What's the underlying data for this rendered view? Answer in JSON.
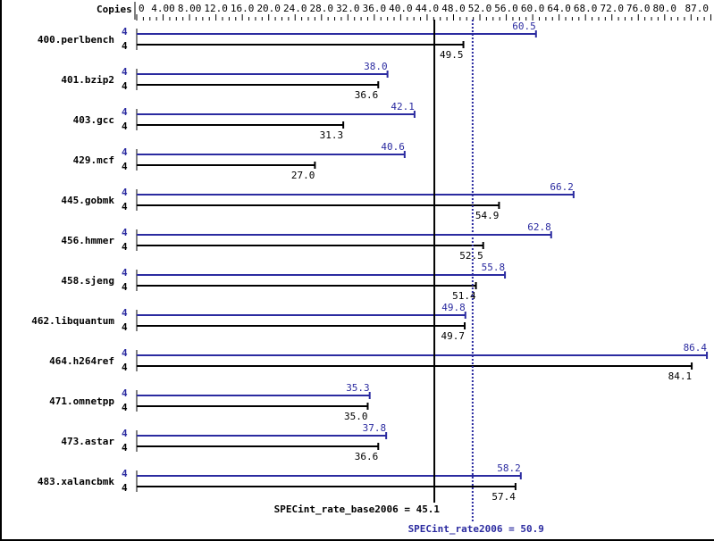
{
  "chart_data": {
    "type": "bar",
    "orientation": "horizontal",
    "title": "",
    "axis_header": "Copies",
    "x_ticks": [
      "0",
      "4.00",
      "8.00",
      "12.0",
      "16.0",
      "20.0",
      "24.0",
      "28.0",
      "32.0",
      "36.0",
      "40.0",
      "44.0",
      "48.0",
      "52.0",
      "56.0",
      "60.0",
      "64.0",
      "68.0",
      "72.0",
      "76.0",
      "80.0",
      "87.0"
    ],
    "x_tick_values": [
      0,
      4,
      8,
      12,
      16,
      20,
      24,
      28,
      32,
      36,
      40,
      44,
      48,
      52,
      56,
      60,
      64,
      68,
      72,
      76,
      80,
      87
    ],
    "xlim": [
      0,
      87
    ],
    "categories": [
      "400.perlbench",
      "401.bzip2",
      "403.gcc",
      "429.mcf",
      "445.gobmk",
      "456.hmmer",
      "458.sjeng",
      "462.libquantum",
      "464.h264ref",
      "471.omnetpp",
      "473.astar",
      "483.xalancbmk"
    ],
    "series": [
      {
        "name": "SPECint_rate2006 (peak)",
        "color": "#2b2ba0",
        "copies": [
          4,
          4,
          4,
          4,
          4,
          4,
          4,
          4,
          4,
          4,
          4,
          4
        ],
        "values": [
          60.5,
          38.0,
          42.1,
          40.6,
          66.2,
          62.8,
          55.8,
          49.8,
          86.4,
          35.3,
          37.8,
          58.2
        ],
        "labels": [
          "60.5",
          "38.0",
          "42.1",
          "40.6",
          "66.2",
          "62.8",
          "55.8",
          "49.8",
          "86.4",
          "35.3",
          "37.8",
          "58.2"
        ]
      },
      {
        "name": "SPECint_rate_base2006 (base)",
        "color": "#000000",
        "copies": [
          4,
          4,
          4,
          4,
          4,
          4,
          4,
          4,
          4,
          4,
          4,
          4
        ],
        "values": [
          49.5,
          36.6,
          31.3,
          27.0,
          54.9,
          52.5,
          51.4,
          49.7,
          84.1,
          35.0,
          36.6,
          57.4
        ],
        "labels": [
          "49.5",
          "36.6",
          "31.3",
          "27.0",
          "54.9",
          "52.5",
          "51.4",
          "49.7",
          "84.1",
          "35.0",
          "36.6",
          "57.4"
        ]
      }
    ],
    "reference_lines": [
      {
        "name": "base",
        "value": 45.1,
        "label": "SPECint_rate_base2006 = 45.1",
        "color": "#000000",
        "style": "solid"
      },
      {
        "name": "peak",
        "value": 50.9,
        "label": "SPECint_rate2006 = 50.9",
        "color": "#2b2ba0",
        "style": "dotted"
      }
    ],
    "grid": false,
    "legend": "none"
  },
  "colors": {
    "peak": "#2b2ba0",
    "base": "#000000"
  }
}
